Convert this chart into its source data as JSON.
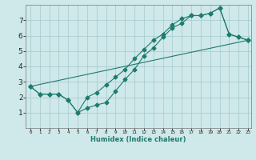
{
  "xlabel": "Humidex (Indice chaleur)",
  "background_color": "#cfe8ea",
  "grid_color": "#aacdd1",
  "line_color": "#1e7b6e",
  "line1_x": [
    0,
    1,
    2,
    3,
    4,
    5,
    6,
    7,
    8,
    9,
    10,
    11,
    12,
    13,
    14,
    15,
    16,
    17,
    18,
    19,
    20,
    21,
    22,
    23
  ],
  "line1_y": [
    2.7,
    2.2,
    2.2,
    2.2,
    1.8,
    1.0,
    1.3,
    1.5,
    1.65,
    2.4,
    3.15,
    3.8,
    4.7,
    5.2,
    5.9,
    6.5,
    6.8,
    7.3,
    7.3,
    7.45,
    7.8,
    6.1,
    5.9,
    5.7
  ],
  "line2_x": [
    0,
    1,
    2,
    3,
    4,
    5,
    6,
    7,
    8,
    9,
    10,
    11,
    12,
    13,
    14,
    15,
    16,
    17,
    18,
    19,
    20,
    21,
    22,
    23
  ],
  "line2_y": [
    2.7,
    2.2,
    2.2,
    2.2,
    1.8,
    1.0,
    2.0,
    2.3,
    2.8,
    3.3,
    3.8,
    4.5,
    5.1,
    5.7,
    6.1,
    6.7,
    7.1,
    7.3,
    7.3,
    7.45,
    7.8,
    6.1,
    5.9,
    5.7
  ],
  "line3_x": [
    0,
    23
  ],
  "line3_y": [
    2.7,
    5.7
  ],
  "xlim": [
    0,
    23
  ],
  "ylim": [
    0,
    8
  ],
  "yticks": [
    1,
    2,
    3,
    4,
    5,
    6,
    7
  ],
  "xticks": [
    0,
    1,
    2,
    3,
    4,
    5,
    6,
    7,
    8,
    9,
    10,
    11,
    12,
    13,
    14,
    15,
    16,
    17,
    18,
    19,
    20,
    21,
    22,
    23
  ],
  "marker_size": 2.5,
  "line_width": 0.8
}
